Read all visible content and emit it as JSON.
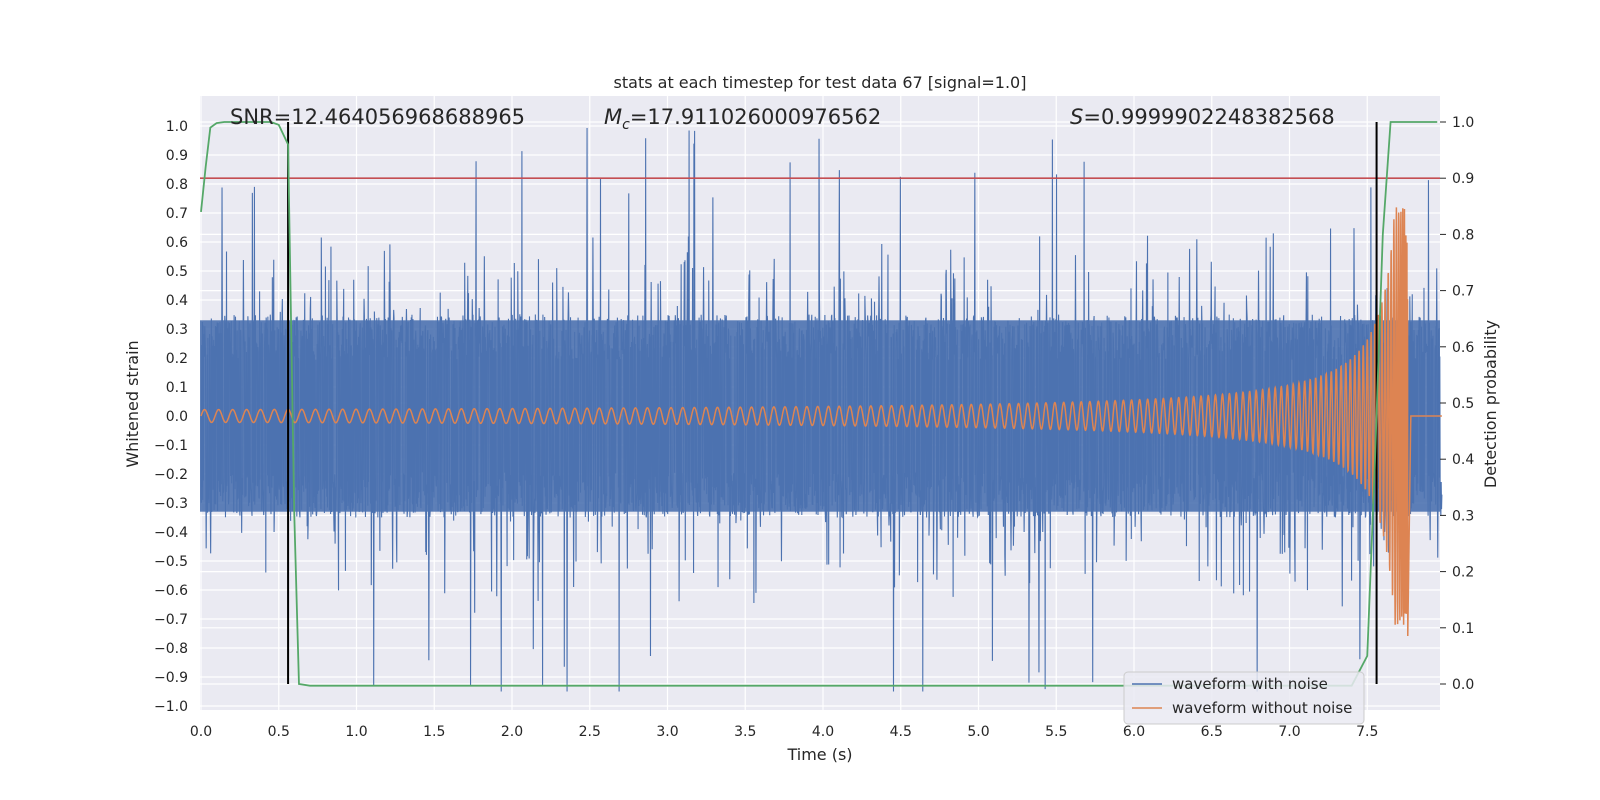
{
  "chart_data": {
    "type": "line",
    "title": "stats at each timestep for test data 67 [signal=1.0]",
    "xlabel": "Time (s)",
    "ylabel": "Whitened strain",
    "ylabel_right": "Detection probability",
    "xlim": [
      0.0,
      8.0
    ],
    "ylim": [
      -1.0,
      1.0
    ],
    "ylim_right": [
      -0.05,
      1.05
    ],
    "x_ticks": [
      "0.0",
      "0.5",
      "1.0",
      "1.5",
      "2.0",
      "2.5",
      "3.0",
      "3.5",
      "4.0",
      "4.5",
      "5.0",
      "5.5",
      "6.0",
      "6.5",
      "7.0",
      "7.5"
    ],
    "y_ticks": [
      "1.0",
      "0.9",
      "0.8",
      "0.7",
      "0.6",
      "0.5",
      "0.4",
      "0.3",
      "0.2",
      "0.1",
      "0.0",
      "−0.1",
      "−0.2",
      "−0.3",
      "−0.4",
      "−0.5",
      "−0.6",
      "−0.7",
      "−0.8",
      "−0.9",
      "−1.0"
    ],
    "y_ticks_right": [
      "1.0",
      "0.9",
      "0.8",
      "0.7",
      "0.6",
      "0.5",
      "0.4",
      "0.3",
      "0.2",
      "0.1",
      "0.0"
    ],
    "grid": true,
    "legend_position": "lower-right",
    "annotations": {
      "snr": "SNR=12.464056968688965",
      "mc_symbol": "M",
      "mc_sub": "c",
      "mc_value": "=17.911026000976562",
      "s_symbol": "S",
      "s_value": "=0.9999902248382568"
    },
    "threshold": {
      "right_axis_value": 0.9,
      "color": "#c44e52"
    },
    "detection_bounds_x": [
      0.56,
      7.56
    ],
    "series": [
      {
        "name": "waveform with noise",
        "color": "#4c72b0",
        "noise_amplitude_typical": 0.35,
        "noise_peak_max": 1.0
      },
      {
        "name": "waveform without noise",
        "color": "#dd8452",
        "chirp": {
          "merger_time": 7.76,
          "peak_amplitude": 0.72,
          "min_amplitude": -0.78,
          "start_amplitude": 0.01
        }
      },
      {
        "color": "#55a868",
        "x": [
          0.0,
          0.03,
          0.06,
          0.1,
          0.15,
          0.2,
          0.3,
          0.45,
          0.5,
          0.56,
          0.6,
          0.63,
          0.7,
          1.0,
          2.0,
          3.0,
          4.0,
          5.0,
          6.0,
          7.0,
          7.4,
          7.5,
          7.55,
          7.6,
          7.65,
          7.8,
          7.95
        ],
        "y": [
          0.84,
          0.92,
          0.99,
          0.998,
          1.0,
          1.0,
          1.0,
          1.0,
          0.995,
          0.96,
          0.3,
          0.0,
          -0.003,
          -0.003,
          -0.003,
          -0.003,
          -0.003,
          -0.003,
          -0.003,
          -0.003,
          -0.003,
          0.05,
          0.4,
          0.8,
          1.0,
          1.0,
          1.0
        ]
      }
    ]
  }
}
